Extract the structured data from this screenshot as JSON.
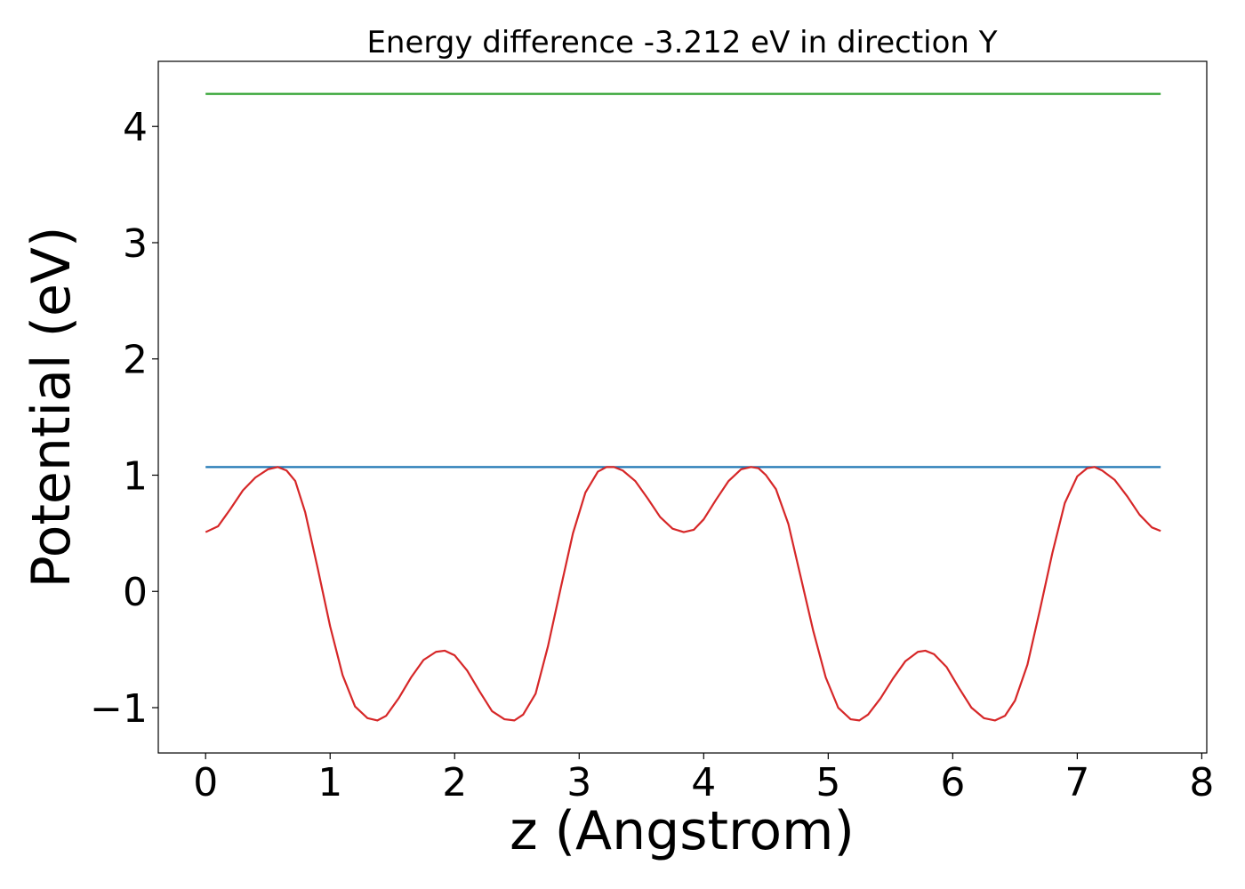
{
  "chart_data": {
    "type": "line",
    "title": "Energy difference -3.212 eV in direction Y",
    "xlabel": "z (Angstrom)",
    "ylabel": "Potential (eV)",
    "xlim": [
      -0.38,
      8.04
    ],
    "ylim": [
      -1.39,
      4.56
    ],
    "xticks": [
      0,
      1,
      2,
      3,
      4,
      5,
      6,
      7,
      8
    ],
    "xtick_labels": [
      "0",
      "1",
      "2",
      "3",
      "4",
      "5",
      "6",
      "7",
      "8"
    ],
    "yticks": [
      -1,
      0,
      1,
      2,
      3,
      4
    ],
    "ytick_labels": [
      "−1",
      "0",
      "1",
      "2",
      "3",
      "4"
    ],
    "grid": false,
    "series": [
      {
        "color": "#2ca02c",
        "x": [
          0,
          7.67
        ],
        "y": [
          4.28,
          4.28
        ]
      },
      {
        "color": "#1f77b4",
        "x": [
          0,
          7.67
        ],
        "y": [
          1.07,
          1.07
        ]
      },
      {
        "color": "#d62728",
        "x": [
          0,
          0.1,
          0.2,
          0.3,
          0.4,
          0.5,
          0.58,
          0.65,
          0.72,
          0.8,
          0.9,
          1.0,
          1.1,
          1.2,
          1.3,
          1.38,
          1.45,
          1.55,
          1.65,
          1.75,
          1.85,
          1.92,
          2.0,
          2.1,
          2.2,
          2.3,
          2.4,
          2.48,
          2.55,
          2.65,
          2.75,
          2.85,
          2.95,
          3.05,
          3.15,
          3.22,
          3.28,
          3.35,
          3.45,
          3.55,
          3.65,
          3.75,
          3.84,
          3.92,
          4.0,
          4.1,
          4.2,
          4.3,
          4.38,
          4.44,
          4.5,
          4.58,
          4.68,
          4.78,
          4.88,
          4.98,
          5.08,
          5.18,
          5.25,
          5.32,
          5.42,
          5.52,
          5.62,
          5.72,
          5.78,
          5.85,
          5.95,
          6.05,
          6.15,
          6.25,
          6.34,
          6.42,
          6.5,
          6.6,
          6.7,
          6.8,
          6.9,
          7.0,
          7.08,
          7.14,
          7.2,
          7.3,
          7.4,
          7.5,
          7.6,
          7.67
        ],
        "y": [
          0.51,
          0.56,
          0.71,
          0.87,
          0.98,
          1.05,
          1.07,
          1.04,
          0.95,
          0.68,
          0.2,
          -0.3,
          -0.72,
          -0.99,
          -1.09,
          -1.11,
          -1.07,
          -0.92,
          -0.74,
          -0.59,
          -0.52,
          -0.51,
          -0.55,
          -0.68,
          -0.86,
          -1.03,
          -1.1,
          -1.11,
          -1.06,
          -0.88,
          -0.47,
          0.02,
          0.5,
          0.85,
          1.03,
          1.07,
          1.07,
          1.04,
          0.95,
          0.8,
          0.64,
          0.54,
          0.51,
          0.53,
          0.62,
          0.79,
          0.95,
          1.05,
          1.07,
          1.06,
          1.0,
          0.88,
          0.58,
          0.12,
          -0.34,
          -0.74,
          -1.0,
          -1.1,
          -1.11,
          -1.06,
          -0.92,
          -0.75,
          -0.6,
          -0.52,
          -0.51,
          -0.54,
          -0.65,
          -0.83,
          -1.0,
          -1.09,
          -1.11,
          -1.07,
          -0.94,
          -0.63,
          -0.16,
          0.33,
          0.76,
          0.99,
          1.06,
          1.07,
          1.04,
          0.96,
          0.82,
          0.66,
          0.55,
          0.52
        ]
      }
    ]
  }
}
